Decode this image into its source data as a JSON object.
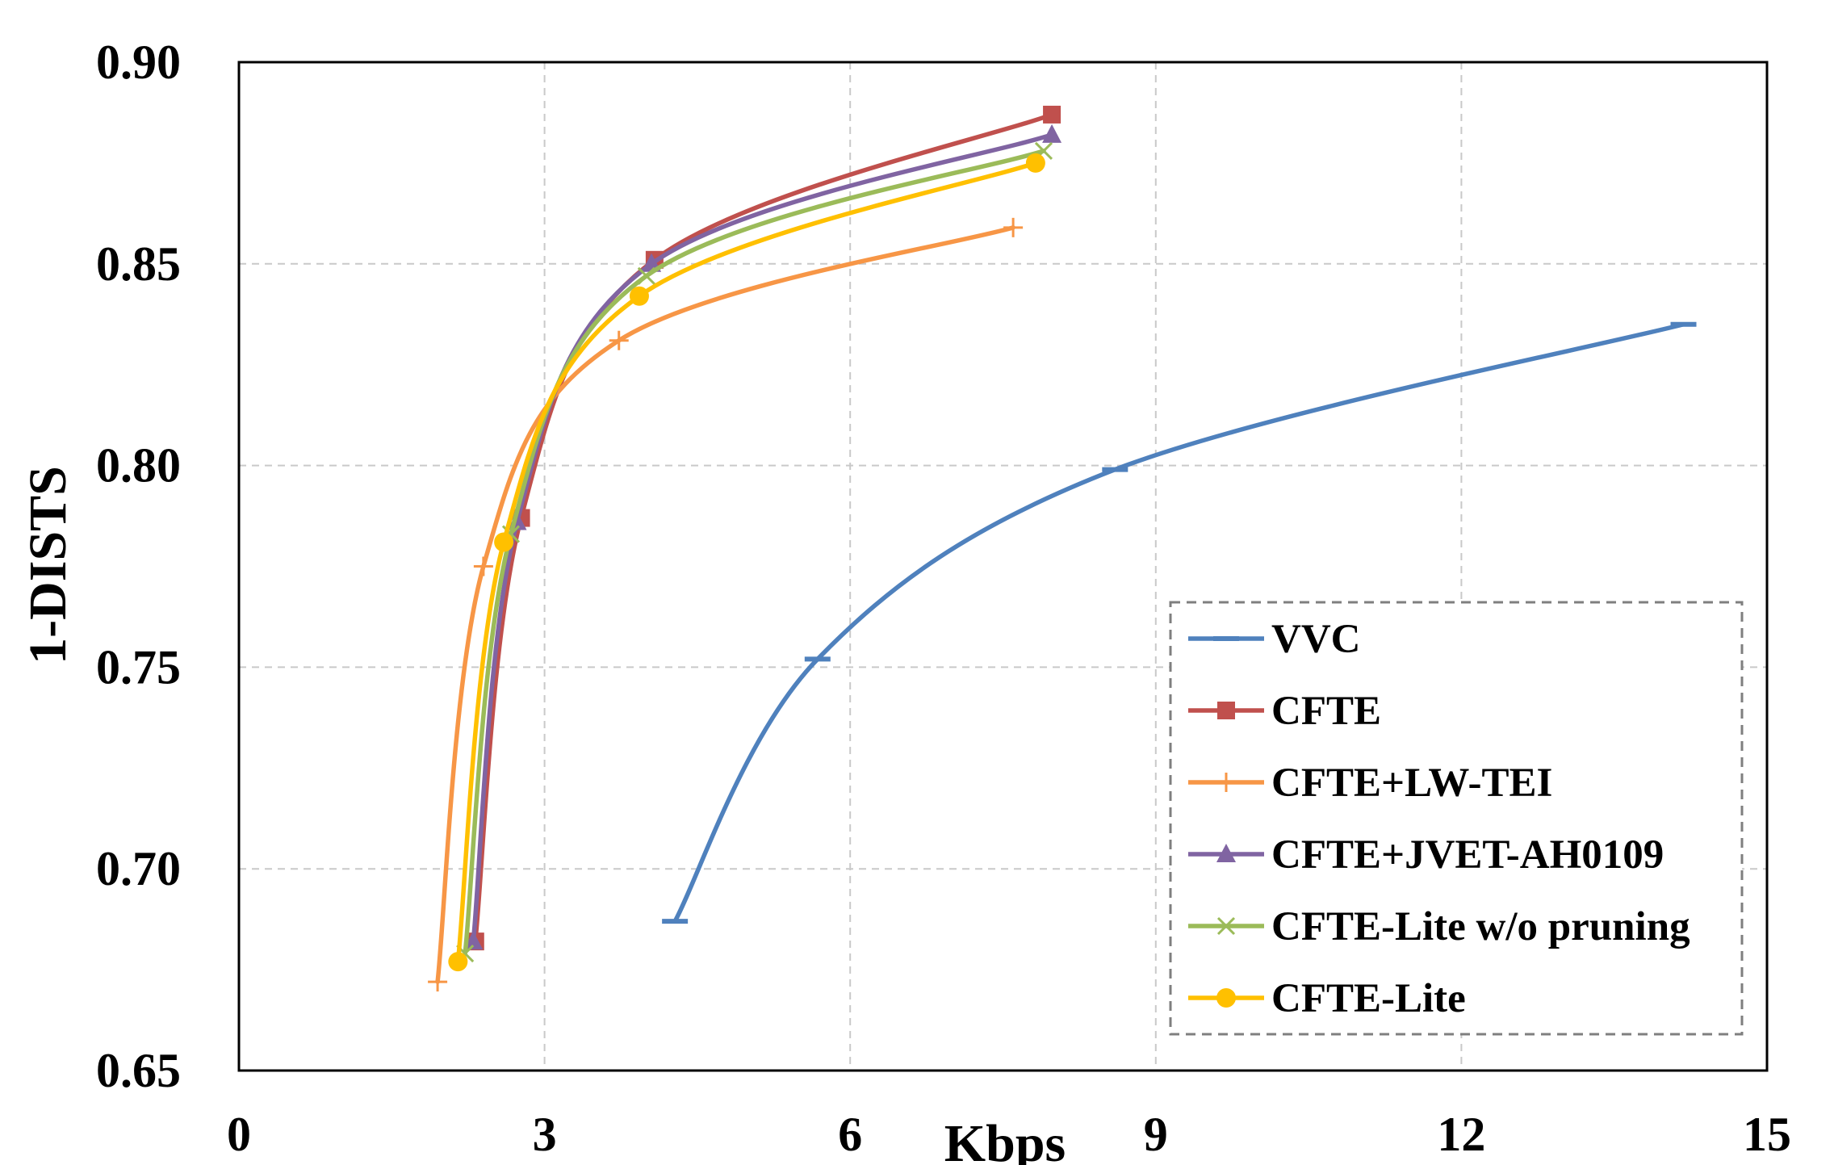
{
  "chart_data": {
    "type": "line",
    "title": "",
    "xlabel": "Kbps",
    "ylabel": "1-DISTS",
    "xlim": [
      0,
      15
    ],
    "ylim": [
      0.65,
      0.9
    ],
    "xticks": [
      0,
      3,
      6,
      9,
      12,
      15
    ],
    "yticks": [
      0.65,
      0.7,
      0.75,
      0.8,
      0.85,
      0.9
    ],
    "xtick_labels": [
      "0",
      "3",
      "6",
      "9",
      "12",
      "15"
    ],
    "ytick_labels": [
      "0.65",
      "0.70",
      "0.75",
      "0.80",
      "0.85",
      "0.90"
    ],
    "grid": true,
    "legend_position": "bottom-right",
    "series": [
      {
        "name": "VVC",
        "color": "#4f81bd",
        "marker": "dash",
        "x": [
          4.28,
          5.68,
          8.6,
          14.18
        ],
        "y": [
          0.687,
          0.752,
          0.799,
          0.835
        ]
      },
      {
        "name": "CFTE",
        "color": "#c0504d",
        "marker": "square",
        "x": [
          2.32,
          2.77,
          4.08,
          7.98
        ],
        "y": [
          0.682,
          0.787,
          0.851,
          0.887
        ]
      },
      {
        "name": "CFTE+LW-TEI",
        "color": "#f79646",
        "marker": "plus",
        "x": [
          1.95,
          2.4,
          3.73,
          7.6
        ],
        "y": [
          0.672,
          0.775,
          0.831,
          0.859
        ]
      },
      {
        "name": "CFTE+JVET-AH0109",
        "color": "#8064a2",
        "marker": "triangle",
        "x": [
          2.3,
          2.73,
          4.05,
          7.98
        ],
        "y": [
          0.682,
          0.786,
          0.85,
          0.882
        ]
      },
      {
        "name": "CFTE-Lite w/o pruning",
        "color": "#9bbb59",
        "marker": "x",
        "x": [
          2.22,
          2.67,
          4.0,
          7.9
        ],
        "y": [
          0.679,
          0.783,
          0.847,
          0.878
        ]
      },
      {
        "name": "CFTE-Lite",
        "color": "#ffc000",
        "marker": "circle",
        "x": [
          2.15,
          2.6,
          3.93,
          7.82
        ],
        "y": [
          0.677,
          0.781,
          0.842,
          0.875
        ]
      }
    ]
  }
}
